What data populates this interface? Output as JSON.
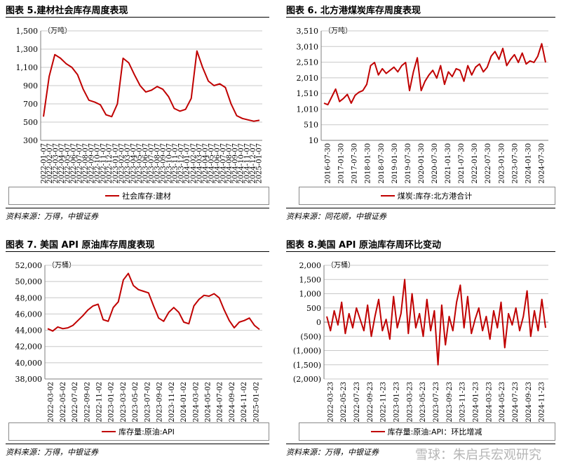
{
  "panels": [
    {
      "title": "图表 5.建材社会库存周度表现",
      "unit": "（万吨）",
      "legend": "社会库存:建材",
      "source": "资料来源：万得，中银证券"
    },
    {
      "title": "图表 6. 北方港煤炭库存周度表现",
      "unit": "（万吨）",
      "legend": "煤炭:库存:北方港合计",
      "source": "资料来源：同花顺，中银证券"
    },
    {
      "title": "图表 7. 美国 API 原油库存周度表现",
      "unit": "（万桶）",
      "legend": "库存量:原油:API",
      "source": "资料来源：万得，中银证券"
    },
    {
      "title": "图表 8.美国 API 原油库存周环比变动",
      "unit": "（万桶）",
      "legend": "库存量:原油:API：环比增减",
      "source": "资料来源：万得，中银证券"
    }
  ],
  "watermark": "雪球：朱启兵宏观研究",
  "colors": {
    "series": "#c00000",
    "grid": "#c8c8c8",
    "axis": "#000000"
  },
  "chart_data": [
    {
      "type": "line",
      "ylim": [
        300,
        1500
      ],
      "yticks": [
        300,
        500,
        700,
        900,
        1100,
        1300,
        1500
      ],
      "ytick_labels": [
        "300",
        "500",
        "700",
        "900",
        "1,100",
        "1,300",
        "1,500"
      ],
      "xtick_labels": [
        "2022-01-07",
        "2022-02-07",
        "2022-03-07",
        "2022-04-07",
        "2022-05-07",
        "2022-06-07",
        "2022-07-07",
        "2022-08-07",
        "2022-09-07",
        "2022-10-07",
        "2022-11-07",
        "2022-12-07",
        "2023-01-07",
        "2023-02-07",
        "2023-03-07",
        "2023-04-07",
        "2023-05-07",
        "2023-06-07",
        "2023-07-07",
        "2023-08-07",
        "2023-09-07",
        "2023-10-07",
        "2023-11-07",
        "2023-12-07",
        "2024-01-07",
        "2024-02-07",
        "2024-03-07",
        "2024-04-07",
        "2024-05-07",
        "2024-06-07",
        "2024-07-07",
        "2024-08-07",
        "2024-09-07",
        "2024-10-07",
        "2024-11-07",
        "2024-12-07",
        "2025-01-07"
      ],
      "series": [
        {
          "name": "社会库存:建材",
          "values": [
            560,
            1000,
            1240,
            1200,
            1140,
            1100,
            1020,
            860,
            740,
            720,
            690,
            580,
            560,
            700,
            1200,
            1150,
            1020,
            900,
            830,
            850,
            890,
            860,
            780,
            650,
            620,
            640,
            760,
            1280,
            1100,
            950,
            900,
            920,
            880,
            700,
            570,
            540,
            525,
            510,
            520
          ]
        }
      ]
    },
    {
      "type": "line",
      "ylim": [
        10,
        3510
      ],
      "yticks": [
        10,
        510,
        1010,
        1510,
        2010,
        2510,
        3010,
        3510
      ],
      "ytick_labels": [
        "10",
        "510",
        "1,010",
        "1,510",
        "2,010",
        "2,510",
        "3,010",
        "3,510"
      ],
      "xtick_labels": [
        "2016-07-30",
        "2017-01-30",
        "2017-07-30",
        "2018-01-30",
        "2018-07-30",
        "2019-01-30",
        "2019-07-30",
        "2020-01-30",
        "2020-07-30",
        "2021-01-30",
        "2021-07-30",
        "2022-01-30",
        "2022-07-30",
        "2023-01-30",
        "2023-07-30",
        "2024-01-30",
        "2024-07-30"
      ],
      "series": [
        {
          "name": "煤炭:库存:北方港合计",
          "values": [
            1200,
            1150,
            1400,
            1650,
            1250,
            1350,
            1480,
            1200,
            1450,
            1550,
            1600,
            1800,
            2400,
            2500,
            2100,
            2300,
            2150,
            2250,
            2350,
            2200,
            2400,
            2500,
            1600,
            2200,
            2650,
            1600,
            1900,
            2100,
            2250,
            2000,
            2400,
            1800,
            2200,
            2050,
            2300,
            2250,
            1900,
            2400,
            2100,
            2350,
            2450,
            2200,
            2350,
            2700,
            2850,
            2600,
            2950,
            2400,
            2600,
            2750,
            2500,
            2800,
            2450,
            2550,
            2500,
            2700,
            3100,
            2500
          ]
        }
      ]
    },
    {
      "type": "line",
      "ylim": [
        38000,
        52000
      ],
      "yticks": [
        38000,
        40000,
        42000,
        44000,
        46000,
        48000,
        50000,
        52000
      ],
      "ytick_labels": [
        "38,000",
        "40,000",
        "42,000",
        "44,000",
        "46,000",
        "48,000",
        "50,000",
        "52,000"
      ],
      "xtick_labels": [
        "2022-03-02",
        "2022-05-02",
        "2022-07-02",
        "2022-09-02",
        "2022-11-02",
        "2023-01-02",
        "2023-03-02",
        "2023-05-02",
        "2023-07-02",
        "2023-09-02",
        "2023-11-02",
        "2024-01-02",
        "2024-03-02",
        "2024-05-02",
        "2024-07-02",
        "2024-09-02",
        "2024-11-02",
        "2025-01-02"
      ],
      "series": [
        {
          "name": "库存量:原油:API",
          "values": [
            44200,
            43900,
            44400,
            44200,
            44300,
            44600,
            45200,
            45800,
            46500,
            47000,
            47200,
            45300,
            45100,
            46800,
            47500,
            50200,
            51000,
            49500,
            49000,
            48800,
            48600,
            47000,
            45500,
            45100,
            46200,
            46800,
            46200,
            45000,
            44800,
            47000,
            47800,
            48300,
            48200,
            48500,
            48000,
            46500,
            45200,
            44300,
            45000,
            45200,
            45500,
            44600,
            44100
          ]
        }
      ]
    },
    {
      "type": "line",
      "ylim": [
        -2000,
        2000
      ],
      "yticks": [
        -2000,
        -1500,
        -1000,
        -500,
        0,
        500,
        1000,
        1500,
        2000
      ],
      "ytick_labels": [
        "(2,000)",
        "(1,500)",
        "(1,000)",
        "(500)",
        "0",
        "500",
        "1,000",
        "1,500",
        "2,000"
      ],
      "xtick_labels": [
        "2022-03-23",
        "2022-05-23",
        "2022-07-23",
        "2022-09-23",
        "2022-11-23",
        "2023-01-23",
        "2023-03-23",
        "2023-05-23",
        "2023-07-23",
        "2023-09-23",
        "2023-11-23",
        "2024-01-23",
        "2024-03-23",
        "2024-05-23",
        "2024-07-23",
        "2024-09-23",
        "2024-11-23"
      ],
      "series": [
        {
          "name": "库存量:原油:API：环比增减",
          "values": [
            200,
            -300,
            400,
            -100,
            700,
            -400,
            300,
            -200,
            500,
            100,
            -300,
            600,
            -500,
            200,
            800,
            -300,
            100,
            -600,
            900,
            -200,
            300,
            1500,
            -400,
            1000,
            -200,
            300,
            -500,
            800,
            -300,
            400,
            -1500,
            600,
            -800,
            200,
            -300,
            700,
            1300,
            -200,
            900,
            -400,
            100,
            500,
            -300,
            200,
            -600,
            400,
            -200,
            700,
            -900,
            300,
            -100,
            500,
            -300,
            200,
            1100,
            -500,
            400,
            -300,
            800,
            -200
          ]
        }
      ]
    }
  ]
}
